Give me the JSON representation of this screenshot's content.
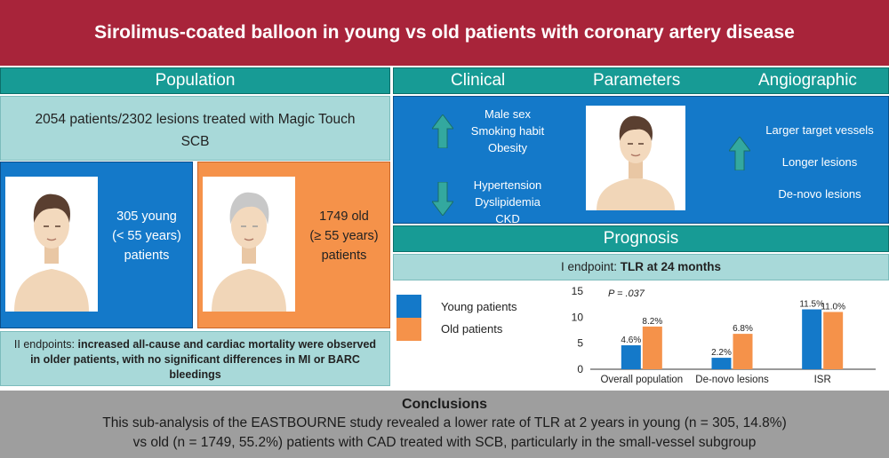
{
  "title": "Sirolimus-coated balloon in young vs old patients with coronary artery disease",
  "population": {
    "header": "Population",
    "summary": "2054 patients/2302 lesions treated with Magic Touch SCB",
    "young": [
      "305 young",
      "(< 55 years)",
      "patients"
    ],
    "old": [
      "1749 old",
      "(≥ 55 years)",
      "patients"
    ],
    "endpoints_prefix": "II endpoints: ",
    "endpoints_bold": "increased all-cause and cardiac mortality were observed in older patients, with no significant differences in MI or BARC bleedings"
  },
  "parameters": {
    "clinical_label": "Clinical",
    "parameters_label": "Parameters",
    "angiographic_label": "Angiographic",
    "clinical_up": [
      "Male sex",
      "Smoking habit",
      "Obesity"
    ],
    "clinical_down": [
      "Hypertension",
      "Dyslipidemia",
      "CKD"
    ],
    "angiographic_up": [
      "Larger target vessels",
      "Longer lesions",
      "De-novo lesions"
    ]
  },
  "prognosis": {
    "header": "Prognosis",
    "endpoint_prefix": "I endpoint: ",
    "endpoint_bold": "TLR at 24 months",
    "legend": [
      "Young patients",
      "Old patients"
    ]
  },
  "chart_data": {
    "type": "bar",
    "categories": [
      "Overall population",
      "De-novo lesions",
      "ISR"
    ],
    "series": [
      {
        "name": "Young patients",
        "values": [
          4.6,
          2.2,
          11.5
        ],
        "labels": [
          "4.6%",
          "2.2%",
          "11.5%"
        ]
      },
      {
        "name": "Old patients",
        "values": [
          8.2,
          6.8,
          11.0
        ],
        "labels": [
          "8.2%",
          "6.8%",
          "11.0%"
        ]
      }
    ],
    "ylim": [
      0,
      15
    ],
    "yticks": [
      "15",
      "10",
      "5",
      "0"
    ],
    "annotation": "P = .037",
    "colors": [
      "#1479c9",
      "#f5924a"
    ]
  },
  "conclusions": {
    "header": "Conclusions",
    "line1": "This sub-analysis of the EASTBOURNE study revealed a lower rate of TLR at 2 years in young (n = 305, 14.8%)",
    "line2": "vs old (n = 1749, 55.2%) patients with CAD treated with SCB, particularly in the small-vessel subgroup"
  },
  "icons": [
    "young-patient-icon",
    "old-patient-icon",
    "arrow-up-icon",
    "arrow-down-icon"
  ]
}
